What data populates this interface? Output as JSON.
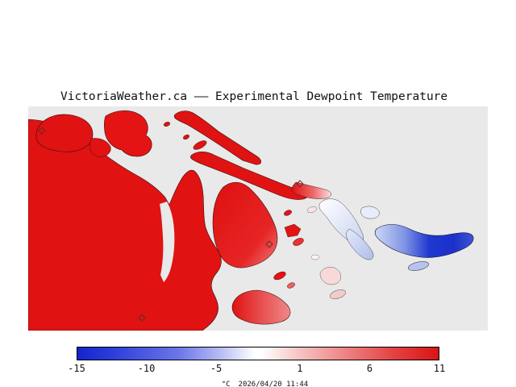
{
  "title": "VictoriaWeather.ca —— Experimental Dewpoint Temperature",
  "map": {
    "water_color": "#e9e9e9",
    "land_warm_color": "#e01212",
    "land_cold_color": "#2038d0",
    "station_marker_count": 4
  },
  "colorbar": {
    "min": -15,
    "max": 11,
    "tick_values": [
      -15,
      -10,
      -5,
      1,
      6,
      11
    ],
    "tick_labels": [
      "-15",
      "-10",
      "-5",
      "1",
      "6",
      "11"
    ],
    "gradient_stops": [
      "#1423cd 0%",
      "#2e3fd9 10%",
      "#6b76e8 28%",
      "#b9bff4 40%",
      "#ffffff 49%",
      "#ffffff 51%",
      "#f6c0c0 62%",
      "#ee8585 74%",
      "#e34545 87%",
      "#da1414 100%"
    ]
  },
  "footer": {
    "unit_label": "°C",
    "timestamp": "2026/04/20 11:44"
  }
}
